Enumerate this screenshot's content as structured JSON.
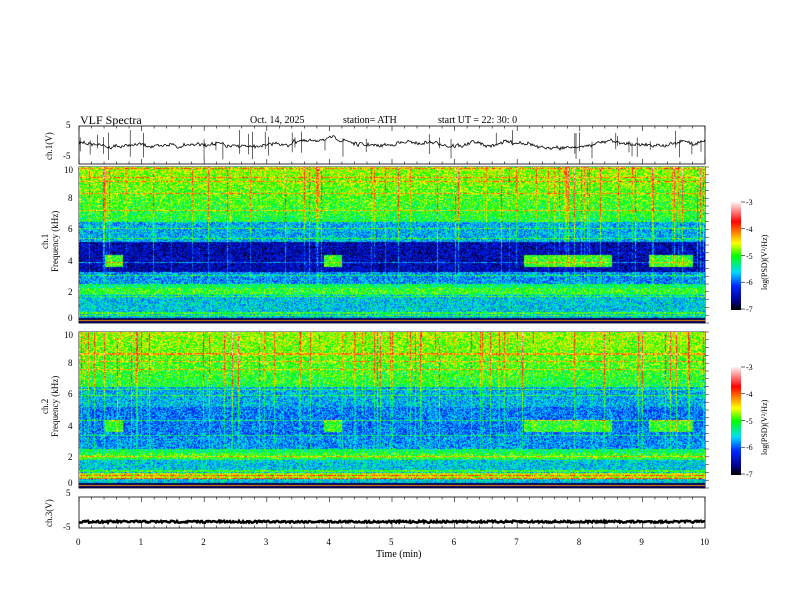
{
  "header": {
    "title": "VLF  Spectra",
    "date": "Oct. 14, 2025",
    "station": "station= ATH",
    "start": "start  UT  =    22: 30: 0"
  },
  "chart_data": [
    {
      "type": "line",
      "name": "ch1",
      "ylabel": "ch.1(V)",
      "ylim": [
        -5,
        5
      ],
      "yticks": [
        "5",
        "-5"
      ],
      "x_range_min": [
        0,
        10
      ],
      "approx_level": 0
    },
    {
      "type": "heatmap",
      "name": "ch1 spectrogram",
      "ylabel": "ch.1\nFrequency (kHz)",
      "ylabel_lines": [
        "ch.1",
        "Frequency  (kHz)"
      ],
      "ylim_khz": [
        0,
        10
      ],
      "yticks": [
        "0",
        "2",
        "4",
        "6",
        "8",
        "10"
      ],
      "colorbar": {
        "label": "log(PSD)(V²/Hz)",
        "range": [
          -7,
          -3
        ],
        "ticks": [
          "-3",
          "-4",
          "-5",
          "-6",
          "-7"
        ]
      },
      "band_4khz_intervals_min": [
        [
          0.4,
          0.7
        ],
        [
          3.9,
          4.2
        ],
        [
          7.1,
          8.5
        ],
        [
          9.1,
          9.8
        ]
      ]
    },
    {
      "type": "heatmap",
      "name": "ch2 spectrogram",
      "ylabel_lines": [
        "ch.2",
        "Frequency  (kHz)"
      ],
      "ylim_khz": [
        0,
        10
      ],
      "yticks": [
        "0",
        "2",
        "4",
        "6",
        "8",
        "10"
      ],
      "colorbar": {
        "label": "log(PSD)(V²/Hz)",
        "range": [
          -7,
          -3
        ],
        "ticks": [
          "-3",
          "-4",
          "-5",
          "-6",
          "-7"
        ]
      },
      "band_4khz_intervals_min": [
        [
          0.4,
          0.7
        ],
        [
          3.9,
          4.2
        ],
        [
          7.1,
          8.5
        ],
        [
          9.1,
          9.8
        ]
      ]
    },
    {
      "type": "line",
      "name": "ch3",
      "ylabel": "ch.3(V)",
      "ylim": [
        -5,
        5
      ],
      "yticks": [
        "5",
        "-5"
      ],
      "approx_level": -2
    }
  ],
  "xaxis": {
    "label": "Time  (min)",
    "range": [
      0,
      10
    ],
    "ticks": [
      "0",
      "1",
      "2",
      "3",
      "4",
      "5",
      "6",
      "7",
      "8",
      "9",
      "10"
    ]
  },
  "colors": {
    "trace": "#000000"
  }
}
